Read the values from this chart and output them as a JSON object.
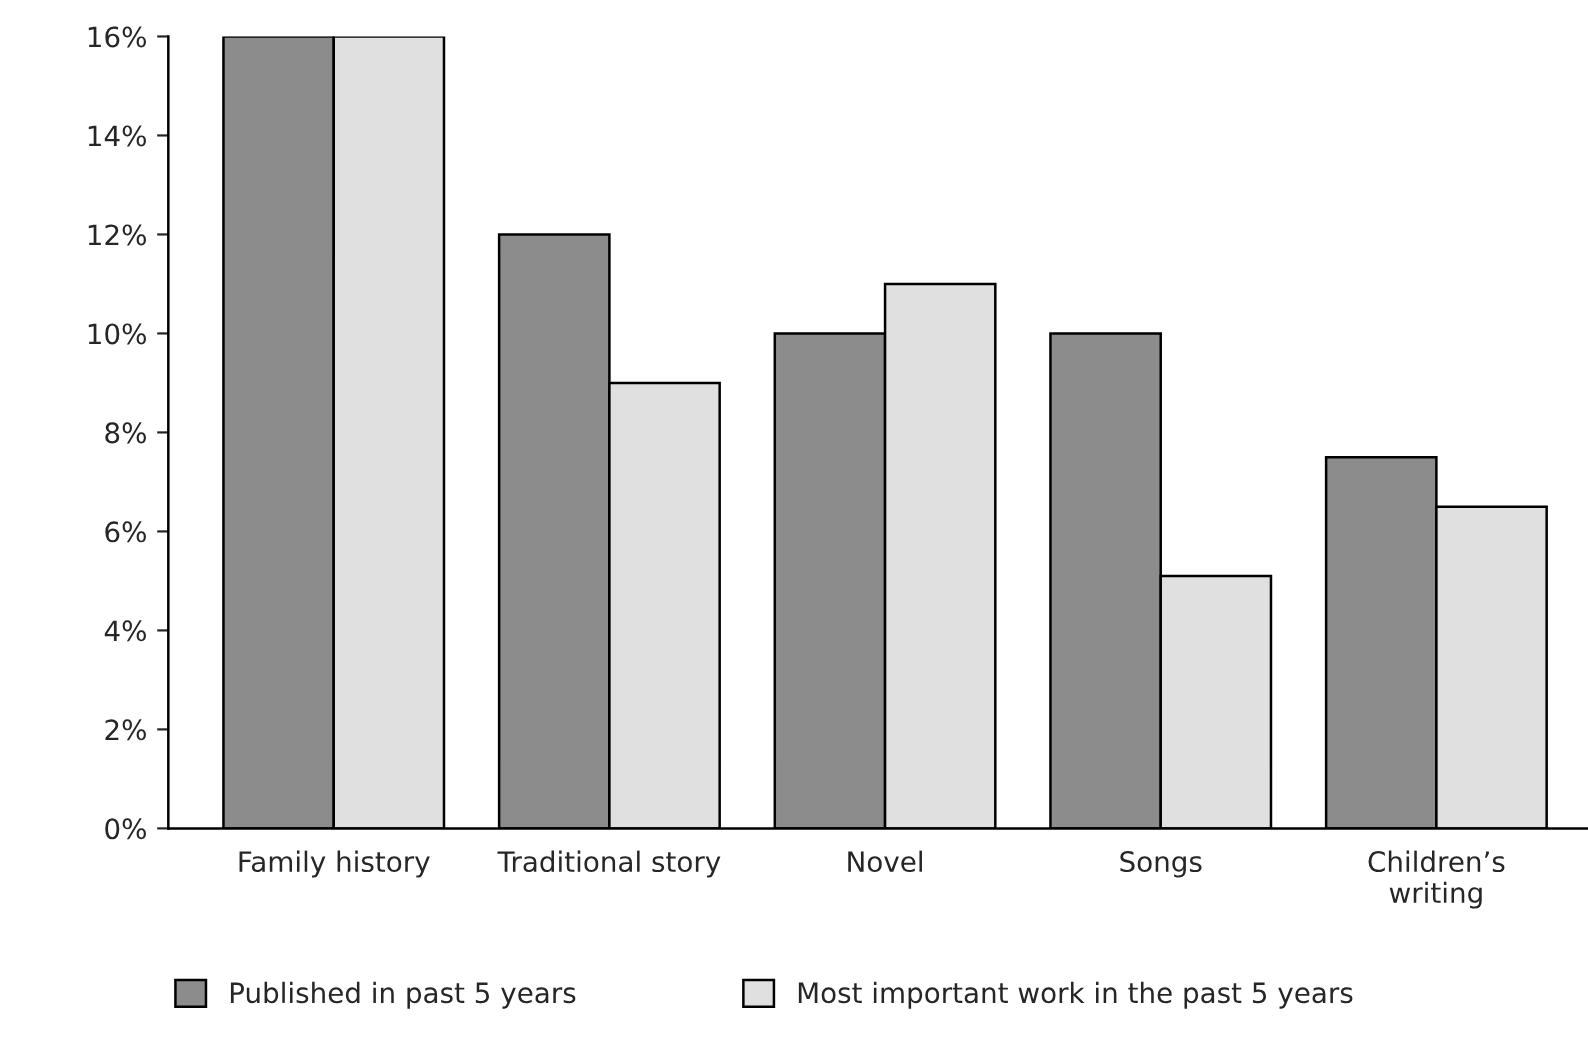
{
  "chart_data": {
    "type": "bar",
    "categories": [
      "Family history",
      "Traditional story",
      "Novel",
      "Songs",
      "Children’s\nwriting"
    ],
    "series": [
      {
        "name": "Published in past 5 years",
        "color": "#8c8c8c",
        "values": [
          16,
          12,
          10,
          10,
          7.5
        ]
      },
      {
        "name": "Most important work in the past 5 years",
        "color": "#e0e0e0",
        "values": [
          16,
          9,
          11,
          5.1,
          6.5
        ]
      }
    ],
    "ylim": [
      0,
      16
    ],
    "yticks": [
      {
        "value": 0,
        "label": "0%"
      },
      {
        "value": 2,
        "label": "2%"
      },
      {
        "value": 4,
        "label": "4%"
      },
      {
        "value": 6,
        "label": "6%"
      },
      {
        "value": 8,
        "label": "8%"
      },
      {
        "value": 10,
        "label": "10%"
      },
      {
        "value": 12,
        "label": "12%"
      },
      {
        "value": 14,
        "label": "14%"
      },
      {
        "value": 16,
        "label": "16%"
      }
    ],
    "grid": false,
    "legend": "bottom"
  }
}
